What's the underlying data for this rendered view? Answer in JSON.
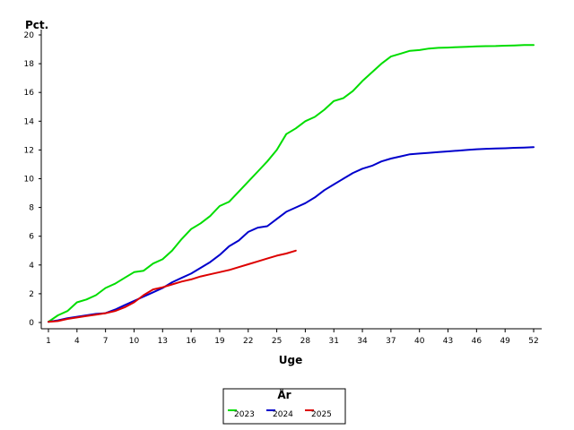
{
  "chart_data": {
    "type": "line",
    "ylabel": "Pct.",
    "xlabel": "Uge",
    "xlim": [
      1,
      52
    ],
    "ylim": [
      0,
      20
    ],
    "xticks": [
      1,
      4,
      7,
      10,
      13,
      16,
      19,
      22,
      25,
      28,
      31,
      34,
      37,
      40,
      43,
      46,
      49,
      52
    ],
    "yticks": [
      0,
      2,
      4,
      6,
      8,
      10,
      12,
      14,
      16,
      18,
      20
    ],
    "grid": false,
    "legend": {
      "title": "År",
      "placement": "bottom-center"
    },
    "series": [
      {
        "name": "2023",
        "color": "#00dd00",
        "x": [
          1,
          2,
          3,
          4,
          5,
          6,
          7,
          8,
          9,
          10,
          11,
          12,
          13,
          14,
          15,
          16,
          17,
          18,
          19,
          20,
          21,
          22,
          23,
          24,
          25,
          26,
          27,
          28,
          29,
          30,
          31,
          32,
          33,
          34,
          35,
          36,
          37,
          38,
          39,
          40,
          41,
          42,
          43,
          44,
          45,
          46,
          47,
          48,
          49,
          50,
          51,
          52
        ],
        "values": [
          0.05,
          0.5,
          0.8,
          1.4,
          1.6,
          1.9,
          2.4,
          2.7,
          3.1,
          3.5,
          3.6,
          4.1,
          4.4,
          5.0,
          5.8,
          6.5,
          6.9,
          7.4,
          8.1,
          8.4,
          9.1,
          9.8,
          10.5,
          11.2,
          12.0,
          13.1,
          13.5,
          14.0,
          14.3,
          14.8,
          15.4,
          15.6,
          16.1,
          16.8,
          17.4,
          18.0,
          18.5,
          18.7,
          18.9,
          18.95,
          19.05,
          19.1,
          19.12,
          19.15,
          19.18,
          19.2,
          19.22,
          19.23,
          19.25,
          19.27,
          19.3,
          19.3
        ]
      },
      {
        "name": "2024",
        "color": "#0000cc",
        "x": [
          1,
          2,
          3,
          4,
          5,
          6,
          7,
          8,
          9,
          10,
          11,
          12,
          13,
          14,
          15,
          16,
          17,
          18,
          19,
          20,
          21,
          22,
          23,
          24,
          25,
          26,
          27,
          28,
          29,
          30,
          31,
          32,
          33,
          34,
          35,
          36,
          37,
          38,
          39,
          40,
          41,
          42,
          43,
          44,
          45,
          46,
          47,
          48,
          49,
          50,
          51,
          52
        ],
        "values": [
          0.05,
          0.15,
          0.3,
          0.4,
          0.5,
          0.6,
          0.65,
          0.9,
          1.2,
          1.5,
          1.8,
          2.1,
          2.4,
          2.8,
          3.1,
          3.4,
          3.8,
          4.2,
          4.7,
          5.3,
          5.7,
          6.3,
          6.6,
          6.7,
          7.2,
          7.7,
          8.0,
          8.3,
          8.7,
          9.2,
          9.6,
          10.0,
          10.4,
          10.7,
          10.9,
          11.2,
          11.4,
          11.55,
          11.7,
          11.75,
          11.8,
          11.85,
          11.9,
          11.95,
          12.0,
          12.05,
          12.08,
          12.1,
          12.12,
          12.15,
          12.17,
          12.2
        ]
      },
      {
        "name": "2025",
        "color": "#dd0000",
        "x": [
          1,
          2,
          3,
          4,
          5,
          6,
          7,
          8,
          9,
          10,
          11,
          12,
          13,
          14,
          15,
          16,
          17,
          18,
          19,
          20,
          21,
          22,
          23,
          24,
          25,
          26,
          27
        ],
        "values": [
          0.05,
          0.1,
          0.25,
          0.35,
          0.45,
          0.55,
          0.65,
          0.8,
          1.05,
          1.4,
          1.9,
          2.3,
          2.45,
          2.65,
          2.85,
          3.0,
          3.2,
          3.35,
          3.5,
          3.65,
          3.85,
          4.05,
          4.25,
          4.45,
          4.65,
          4.8,
          5.0
        ]
      }
    ]
  }
}
